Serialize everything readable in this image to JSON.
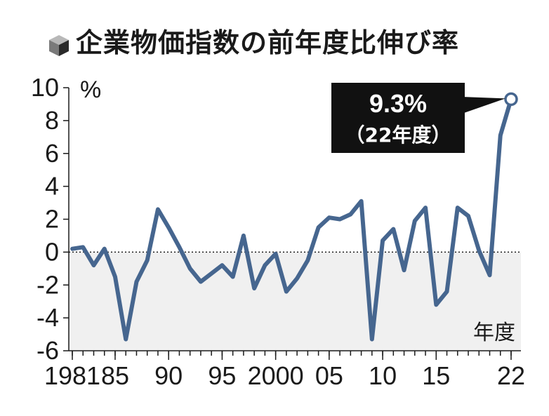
{
  "chart_data": {
    "type": "line",
    "title": "企業物価指数の前年度比伸び率",
    "unit_label": "%",
    "xlabel": "年度",
    "ylim": [
      -6,
      10
    ],
    "y_ticks": [
      10,
      8,
      6,
      4,
      2,
      0,
      -2,
      -4,
      -6
    ],
    "x_tick_labels": [
      {
        "x": 1981,
        "label": "1981"
      },
      {
        "x": 1985,
        "label": "85"
      },
      {
        "x": 1990,
        "label": "90"
      },
      {
        "x": 1995,
        "label": "95"
      },
      {
        "x": 2000,
        "label": "2000"
      },
      {
        "x": 2005,
        "label": "05"
      },
      {
        "x": 2010,
        "label": "10"
      },
      {
        "x": 2015,
        "label": "15"
      },
      {
        "x": 2022,
        "label": "22"
      }
    ],
    "x": [
      1981,
      1982,
      1983,
      1984,
      1985,
      1986,
      1987,
      1988,
      1989,
      1990,
      1991,
      1992,
      1993,
      1994,
      1995,
      1996,
      1997,
      1998,
      1999,
      2000,
      2001,
      2002,
      2003,
      2004,
      2005,
      2006,
      2007,
      2008,
      2009,
      2010,
      2011,
      2012,
      2013,
      2014,
      2015,
      2016,
      2017,
      2018,
      2019,
      2020,
      2021,
      2022
    ],
    "series": [
      {
        "values": [
          0.2,
          0.3,
          -0.8,
          0.2,
          -1.5,
          -5.3,
          -1.8,
          -0.5,
          2.6,
          1.5,
          0.3,
          -1.0,
          -1.8,
          -1.3,
          -0.8,
          -1.5,
          1.0,
          -2.2,
          -0.8,
          -0.1,
          -2.4,
          -1.6,
          -0.5,
          1.5,
          2.1,
          2.0,
          2.3,
          3.1,
          -5.3,
          0.7,
          1.4,
          -1.1,
          1.9,
          2.7,
          -3.2,
          -2.4,
          2.7,
          2.2,
          0.1,
          -1.4,
          7.1,
          9.3
        ],
        "color": "#46668f"
      }
    ],
    "negative_band_color": "#f0f0f0",
    "zero_line": "dotted",
    "annotation": {
      "x": 2022,
      "value_label": "9.3%",
      "sub_label": "（22年度）"
    }
  }
}
